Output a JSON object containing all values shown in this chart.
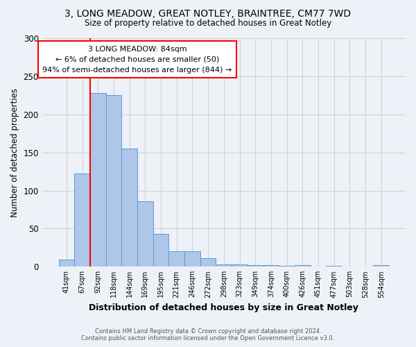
{
  "title1": "3, LONG MEADOW, GREAT NOTLEY, BRAINTREE, CM77 7WD",
  "title2": "Size of property relative to detached houses in Great Notley",
  "xlabel": "Distribution of detached houses by size in Great Notley",
  "ylabel": "Number of detached properties",
  "bar_labels": [
    "41sqm",
    "67sqm",
    "92sqm",
    "118sqm",
    "144sqm",
    "169sqm",
    "195sqm",
    "221sqm",
    "246sqm",
    "272sqm",
    "298sqm",
    "323sqm",
    "349sqm",
    "374sqm",
    "400sqm",
    "426sqm",
    "451sqm",
    "477sqm",
    "503sqm",
    "528sqm",
    "554sqm"
  ],
  "bar_values": [
    9,
    122,
    228,
    225,
    155,
    86,
    43,
    20,
    20,
    11,
    3,
    3,
    2,
    2,
    1,
    2,
    0,
    1,
    0,
    0,
    2
  ],
  "bar_color": "#aec6e8",
  "bar_edge_color": "#5b9bd5",
  "grid_color": "#d0d0d0",
  "vline_color": "red",
  "annotation_text": "3 LONG MEADOW: 84sqm\n← 6% of detached houses are smaller (50)\n94% of semi-detached houses are larger (844) →",
  "annotation_box_color": "white",
  "annotation_box_edge": "red",
  "ylim": [
    0,
    300
  ],
  "yticks": [
    0,
    50,
    100,
    150,
    200,
    250,
    300
  ],
  "footer": "Contains HM Land Registry data © Crown copyright and database right 2024.\nContains public sector information licensed under the Open Government Licence v3.0.",
  "bg_color": "#eef2f8"
}
